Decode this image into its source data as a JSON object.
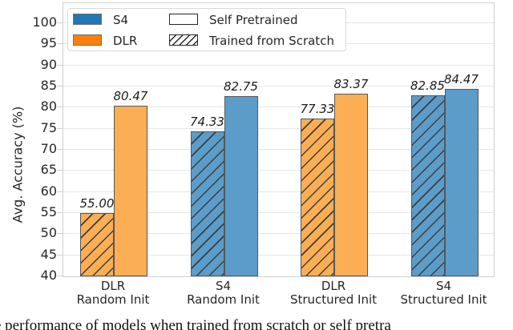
{
  "chart_data": {
    "type": "bar",
    "title": "",
    "xlabel": "",
    "ylabel": "Avg. Accuracy (%)",
    "ylim": [
      40,
      105
    ],
    "y_ticks": [
      40,
      45,
      50,
      55,
      60,
      65,
      70,
      75,
      80,
      85,
      90,
      95,
      100
    ],
    "grid": true,
    "legend_position": "upper left",
    "groups": [
      {
        "label_line1": "DLR",
        "label_line2": "Random Init",
        "model": "DLR"
      },
      {
        "label_line1": "S4",
        "label_line2": "Random Init",
        "model": "S4"
      },
      {
        "label_line1": "DLR",
        "label_line2": "Structured Init",
        "model": "DLR"
      },
      {
        "label_line1": "S4",
        "label_line2": "Structured Init",
        "model": "S4"
      }
    ],
    "series": [
      {
        "name": "Trained from Scratch",
        "hatched": true,
        "values": [
          55.0,
          74.33,
          77.33,
          82.85
        ],
        "value_labels": [
          "55.00",
          "74.33",
          "77.33",
          "82.85"
        ]
      },
      {
        "name": "Self Pretrained",
        "hatched": false,
        "values": [
          80.47,
          82.75,
          83.37,
          84.47
        ],
        "value_labels": [
          "80.47",
          "82.75",
          "83.37",
          "84.47"
        ]
      }
    ],
    "legend": [
      {
        "label": "S4",
        "swatch": "s4"
      },
      {
        "label": "DLR",
        "swatch": "dlr"
      },
      {
        "label": "Self Pretrained",
        "swatch": "plain"
      },
      {
        "label": "Trained from Scratch",
        "swatch": "hatch"
      }
    ],
    "colors": {
      "s4_legend": "#1f77b4",
      "dlr_legend": "#ff7f0e",
      "s4_bar": "#5b9cc9",
      "dlr_bar": "#fcae55",
      "bar_edge": "#54575c",
      "hatch_line": "#3d3d3d",
      "grid_line": "#e5e6e8",
      "frame": "#cdd0d4",
      "text": "#262626"
    }
  },
  "caption": {
    "visible_fragment": "e performance of models when trained from scratch or self pretra"
  }
}
